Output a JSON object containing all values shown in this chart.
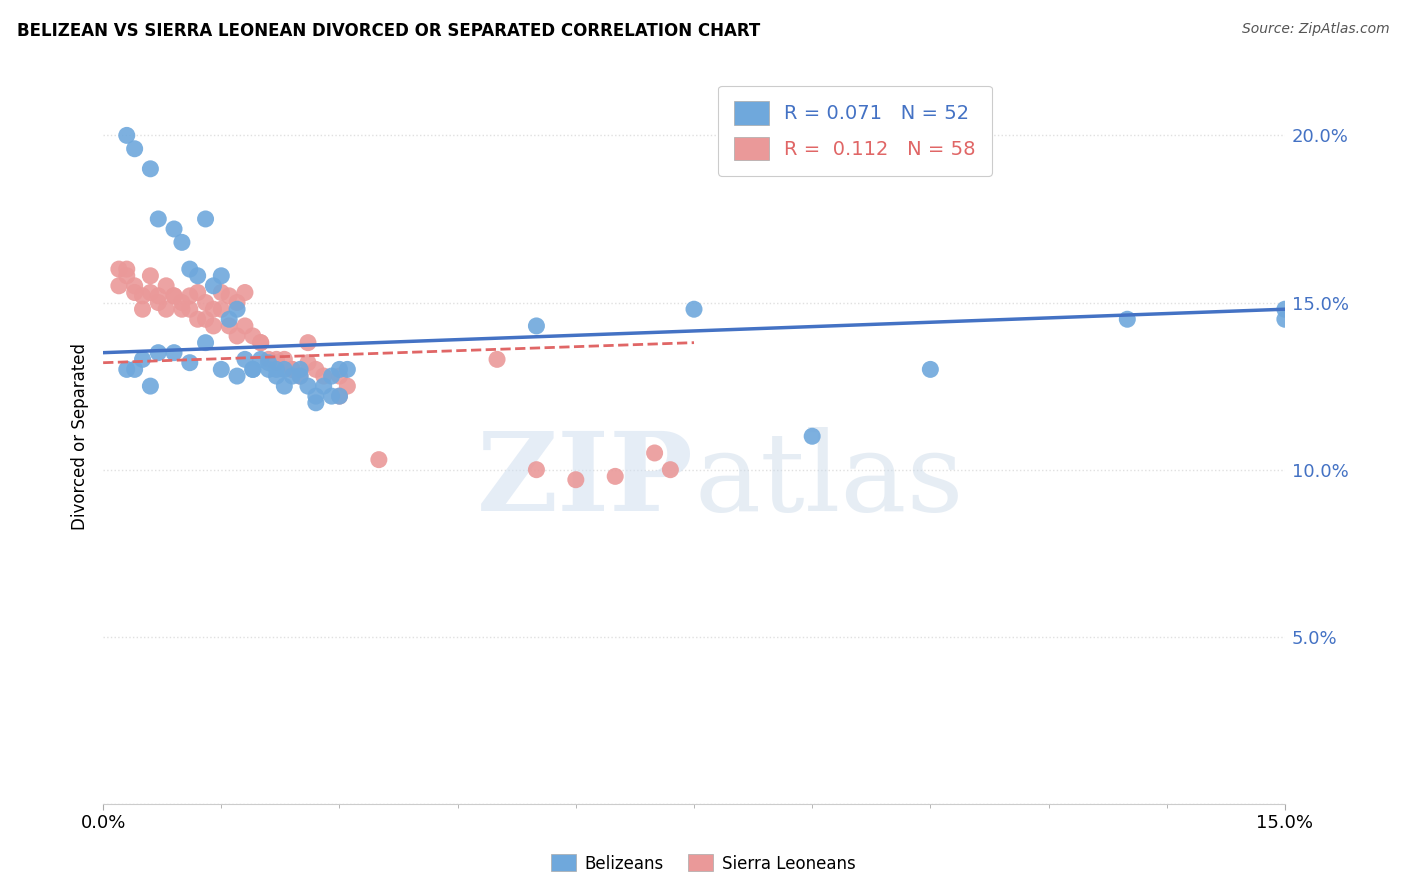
{
  "title": "BELIZEAN VS SIERRA LEONEAN DIVORCED OR SEPARATED CORRELATION CHART",
  "source": "Source: ZipAtlas.com",
  "ylabel": "Divorced or Separated",
  "x_min": 0.0,
  "x_max": 0.15,
  "y_min": 0.0,
  "y_max": 0.22,
  "x_ticks": [
    0.0,
    0.15
  ],
  "x_tick_labels": [
    "0.0%",
    "15.0%"
  ],
  "y_ticks": [
    0.0,
    0.05,
    0.1,
    0.15,
    0.2
  ],
  "y_tick_labels": [
    "",
    "5.0%",
    "10.0%",
    "15.0%",
    "20.0%"
  ],
  "belizean_color": "#6fa8dc",
  "sierra_leonean_color": "#ea9999",
  "belizean_line_color": "#4472c4",
  "sierra_leonean_line_color": "#e06666",
  "legend_belizean_R": "0.071",
  "legend_belizean_N": "52",
  "legend_sierra_R": "0.112",
  "legend_sierra_N": "58",
  "belizean_x": [
    0.003,
    0.004,
    0.006,
    0.007,
    0.009,
    0.01,
    0.011,
    0.012,
    0.013,
    0.014,
    0.015,
    0.016,
    0.017,
    0.018,
    0.019,
    0.02,
    0.021,
    0.022,
    0.023,
    0.024,
    0.025,
    0.026,
    0.027,
    0.028,
    0.029,
    0.03,
    0.003,
    0.005,
    0.007,
    0.009,
    0.011,
    0.013,
    0.015,
    0.017,
    0.019,
    0.021,
    0.023,
    0.025,
    0.027,
    0.029,
    0.031,
    0.004,
    0.006,
    0.022,
    0.03,
    0.055,
    0.075,
    0.09,
    0.105,
    0.13,
    0.15,
    0.15
  ],
  "belizean_y": [
    0.2,
    0.196,
    0.19,
    0.175,
    0.172,
    0.168,
    0.16,
    0.158,
    0.175,
    0.155,
    0.158,
    0.145,
    0.148,
    0.133,
    0.13,
    0.133,
    0.132,
    0.128,
    0.13,
    0.128,
    0.13,
    0.125,
    0.122,
    0.125,
    0.128,
    0.122,
    0.13,
    0.133,
    0.135,
    0.135,
    0.132,
    0.138,
    0.13,
    0.128,
    0.13,
    0.13,
    0.125,
    0.128,
    0.12,
    0.122,
    0.13,
    0.13,
    0.125,
    0.13,
    0.13,
    0.143,
    0.148,
    0.11,
    0.13,
    0.145,
    0.145,
    0.148
  ],
  "sierra_x": [
    0.002,
    0.003,
    0.004,
    0.005,
    0.006,
    0.007,
    0.008,
    0.009,
    0.01,
    0.011,
    0.012,
    0.013,
    0.014,
    0.015,
    0.016,
    0.017,
    0.018,
    0.019,
    0.02,
    0.021,
    0.022,
    0.023,
    0.024,
    0.025,
    0.026,
    0.027,
    0.028,
    0.03,
    0.031,
    0.002,
    0.003,
    0.004,
    0.005,
    0.006,
    0.007,
    0.008,
    0.009,
    0.01,
    0.011,
    0.012,
    0.013,
    0.014,
    0.015,
    0.016,
    0.017,
    0.018,
    0.02,
    0.022,
    0.024,
    0.026,
    0.03,
    0.035,
    0.05,
    0.055,
    0.065,
    0.07,
    0.072,
    0.06
  ],
  "sierra_y": [
    0.16,
    0.158,
    0.155,
    0.152,
    0.153,
    0.15,
    0.148,
    0.152,
    0.148,
    0.148,
    0.145,
    0.145,
    0.143,
    0.148,
    0.143,
    0.14,
    0.143,
    0.14,
    0.138,
    0.133,
    0.133,
    0.133,
    0.13,
    0.128,
    0.138,
    0.13,
    0.128,
    0.128,
    0.125,
    0.155,
    0.16,
    0.153,
    0.148,
    0.158,
    0.152,
    0.155,
    0.152,
    0.15,
    0.152,
    0.153,
    0.15,
    0.148,
    0.153,
    0.152,
    0.15,
    0.153,
    0.138,
    0.132,
    0.13,
    0.132,
    0.122,
    0.103,
    0.133,
    0.1,
    0.098,
    0.105,
    0.1,
    0.097
  ],
  "belizean_trend_x": [
    0.0,
    0.15
  ],
  "belizean_trend_y": [
    0.135,
    0.148
  ],
  "sierra_trend_x": [
    0.0,
    0.075
  ],
  "sierra_trend_y": [
    0.132,
    0.138
  ],
  "watermark_zip": "ZIP",
  "watermark_atlas": "atlas",
  "background_color": "#ffffff",
  "grid_color": "#e0e0e0"
}
